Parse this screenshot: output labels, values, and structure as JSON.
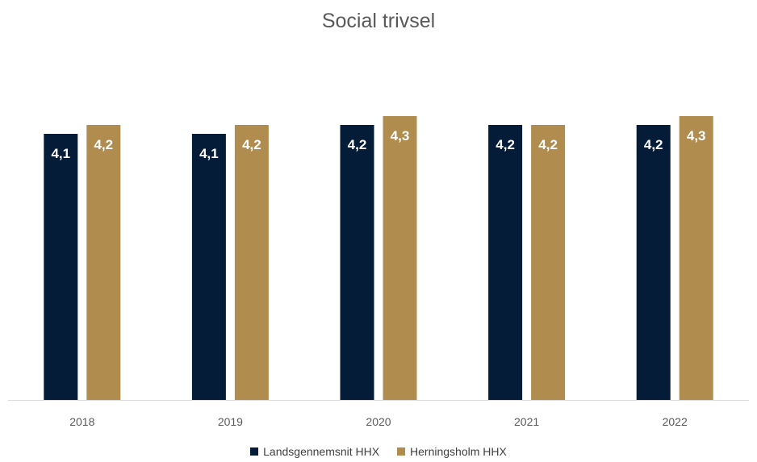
{
  "chart_data": {
    "type": "bar",
    "title": "Social trivsel",
    "categories": [
      "2018",
      "2019",
      "2020",
      "2021",
      "2022"
    ],
    "series": [
      {
        "name": "Landsgennemsnit HHX",
        "color": "#041C38",
        "values": [
          4.1,
          4.1,
          4.2,
          4.2,
          4.2
        ],
        "labels": [
          "4,1",
          "4,1",
          "4,2",
          "4,2",
          "4,2"
        ]
      },
      {
        "name": "Herningsholm HHX",
        "color": "#B08D4F",
        "values": [
          4.2,
          4.2,
          4.3,
          4.2,
          4.3
        ],
        "labels": [
          "4,2",
          "4,2",
          "4,3",
          "4,2",
          "4,3"
        ]
      }
    ],
    "ylim": [
      0,
      5
    ],
    "grid": false,
    "legend": "bottom",
    "data_labels": true
  }
}
